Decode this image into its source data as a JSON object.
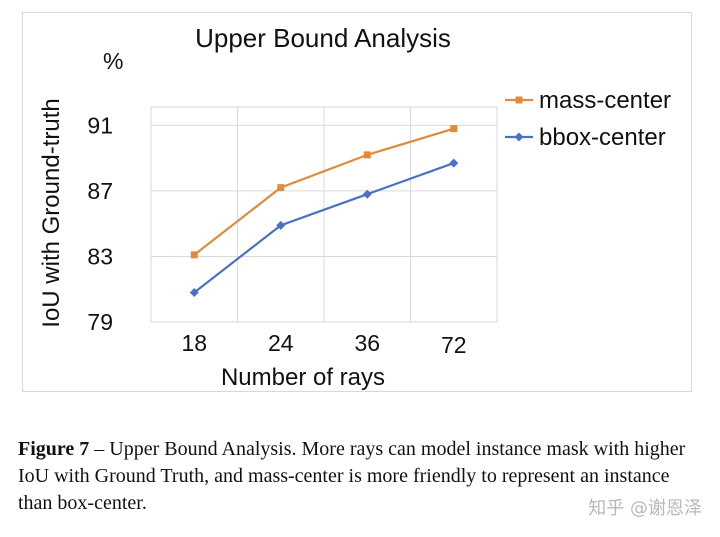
{
  "chart_data": {
    "type": "line",
    "title": "Upper Bound Analysis",
    "xlabel": "Number of rays",
    "ylabel": "IoU with Ground-truth",
    "yunit": "%",
    "categories": [
      "18",
      "24",
      "36",
      "72"
    ],
    "ylim": [
      79,
      92
    ],
    "yticks": [
      79,
      83,
      87,
      91
    ],
    "grid": true,
    "legend_position": "right",
    "series": [
      {
        "name": "mass-center",
        "color": "#e08a3c",
        "marker": "square",
        "values": [
          83.1,
          87.2,
          89.2,
          90.8
        ]
      },
      {
        "name": "bbox-center",
        "color": "#4a72c4",
        "marker": "diamond",
        "values": [
          80.8,
          84.9,
          86.8,
          88.7
        ]
      }
    ]
  },
  "caption": {
    "label": "Figure 7",
    "dash": " – ",
    "text": "Upper Bound Analysis. More rays can model instance mask with higher IoU with Ground Truth, and mass-center is more friendly to represent an instance than box-center."
  },
  "watermark": "知乎 @谢恩泽"
}
